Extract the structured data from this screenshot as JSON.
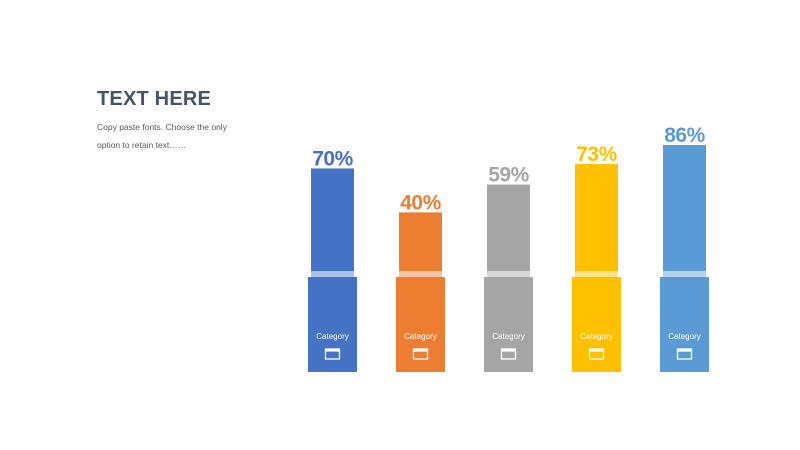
{
  "header": {
    "title": "TEXT HERE",
    "description_lines": [
      "Copy paste fonts. Choose the only",
      "option to retain text……"
    ]
  },
  "chart_data": {
    "type": "bar",
    "title": "",
    "categories": [
      "Category",
      "Category",
      "Category",
      "Category",
      "Category"
    ],
    "values": [
      70,
      40,
      59,
      73,
      86
    ],
    "value_labels": [
      "70%",
      "40%",
      "59%",
      "73%",
      "86%"
    ],
    "ylim": [
      0,
      100
    ],
    "grid": false,
    "legend": "none",
    "colors": [
      "#4472c4",
      "#ed7d31",
      "#a5a5a5",
      "#ffc000",
      "#5b9bd5"
    ],
    "category_icon": "window-icon"
  }
}
